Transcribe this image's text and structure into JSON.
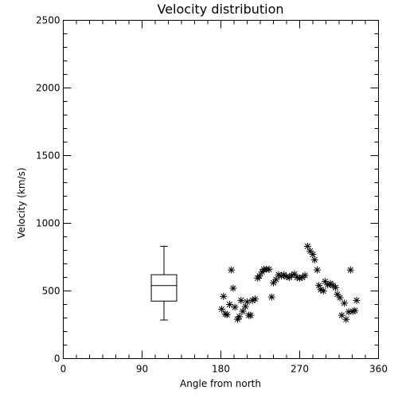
{
  "chart_data": {
    "type": "scatter",
    "title": "Velocity distribution",
    "xlabel": "Angle from north",
    "ylabel": "Velocity (km/s)",
    "xlim": [
      0,
      360
    ],
    "ylim": [
      0,
      2500
    ],
    "xticks": [
      0,
      90,
      180,
      270,
      360
    ],
    "yticks": [
      0,
      500,
      1000,
      1500,
      2000,
      2500
    ],
    "grid": false,
    "boxplot": {
      "x": 115,
      "width": 29,
      "min": 285,
      "q1": 425,
      "median": 540,
      "q3": 620,
      "max": 830
    },
    "points": [
      [
        181,
        365
      ],
      [
        183,
        460
      ],
      [
        185,
        330
      ],
      [
        187,
        325
      ],
      [
        190,
        400
      ],
      [
        192,
        655
      ],
      [
        194,
        520
      ],
      [
        196,
        380
      ],
      [
        199,
        290
      ],
      [
        201,
        310
      ],
      [
        203,
        430
      ],
      [
        205,
        350
      ],
      [
        208,
        385
      ],
      [
        210,
        420
      ],
      [
        212,
        320
      ],
      [
        214,
        320
      ],
      [
        216,
        430
      ],
      [
        219,
        440
      ],
      [
        222,
        595
      ],
      [
        224,
        610
      ],
      [
        227,
        640
      ],
      [
        229,
        660
      ],
      [
        232,
        660
      ],
      [
        235,
        660
      ],
      [
        238,
        455
      ],
      [
        240,
        560
      ],
      [
        243,
        585
      ],
      [
        246,
        620
      ],
      [
        249,
        610
      ],
      [
        252,
        620
      ],
      [
        255,
        605
      ],
      [
        258,
        600
      ],
      [
        261,
        615
      ],
      [
        264,
        625
      ],
      [
        267,
        600
      ],
      [
        270,
        595
      ],
      [
        273,
        600
      ],
      [
        276,
        615
      ],
      [
        279,
        830
      ],
      [
        282,
        795
      ],
      [
        285,
        770
      ],
      [
        287,
        730
      ],
      [
        290,
        655
      ],
      [
        292,
        540
      ],
      [
        294,
        510
      ],
      [
        297,
        500
      ],
      [
        299,
        570
      ],
      [
        302,
        545
      ],
      [
        305,
        555
      ],
      [
        308,
        540
      ],
      [
        311,
        525
      ],
      [
        313,
        475
      ],
      [
        316,
        450
      ],
      [
        318,
        320
      ],
      [
        321,
        410
      ],
      [
        323,
        290
      ],
      [
        326,
        345
      ],
      [
        328,
        655
      ],
      [
        331,
        350
      ],
      [
        333,
        355
      ],
      [
        335,
        430
      ]
    ]
  }
}
